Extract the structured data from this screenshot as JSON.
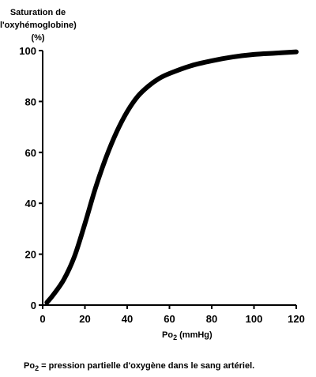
{
  "chart_data": {
    "type": "line",
    "ylabel_lines": [
      "Saturation de",
      "l'oxyhémoglobine)",
      "(%)"
    ],
    "xlabel_main": "Po",
    "xlabel_sub": "2",
    "xlabel_unit": " (mmHg)",
    "xlim": [
      0,
      120
    ],
    "ylim": [
      0,
      100
    ],
    "xticks": [
      0,
      20,
      40,
      60,
      80,
      100,
      120
    ],
    "yticks": [
      0,
      20,
      40,
      60,
      80,
      100
    ],
    "grid": false,
    "line_color": "#000000",
    "x": [
      2,
      5,
      10,
      15,
      20,
      25,
      30,
      35,
      40,
      45,
      50,
      55,
      60,
      70,
      80,
      90,
      100,
      110,
      120
    ],
    "y": [
      1,
      4,
      10,
      19,
      32,
      46,
      58,
      68,
      76,
      82,
      86,
      89,
      91,
      94,
      96,
      97.5,
      98.5,
      99,
      99.5
    ]
  },
  "footnote": {
    "main": "Po",
    "sub": "2",
    "rest": " = pression partielle d'oxygène dans le sang artériel."
  }
}
